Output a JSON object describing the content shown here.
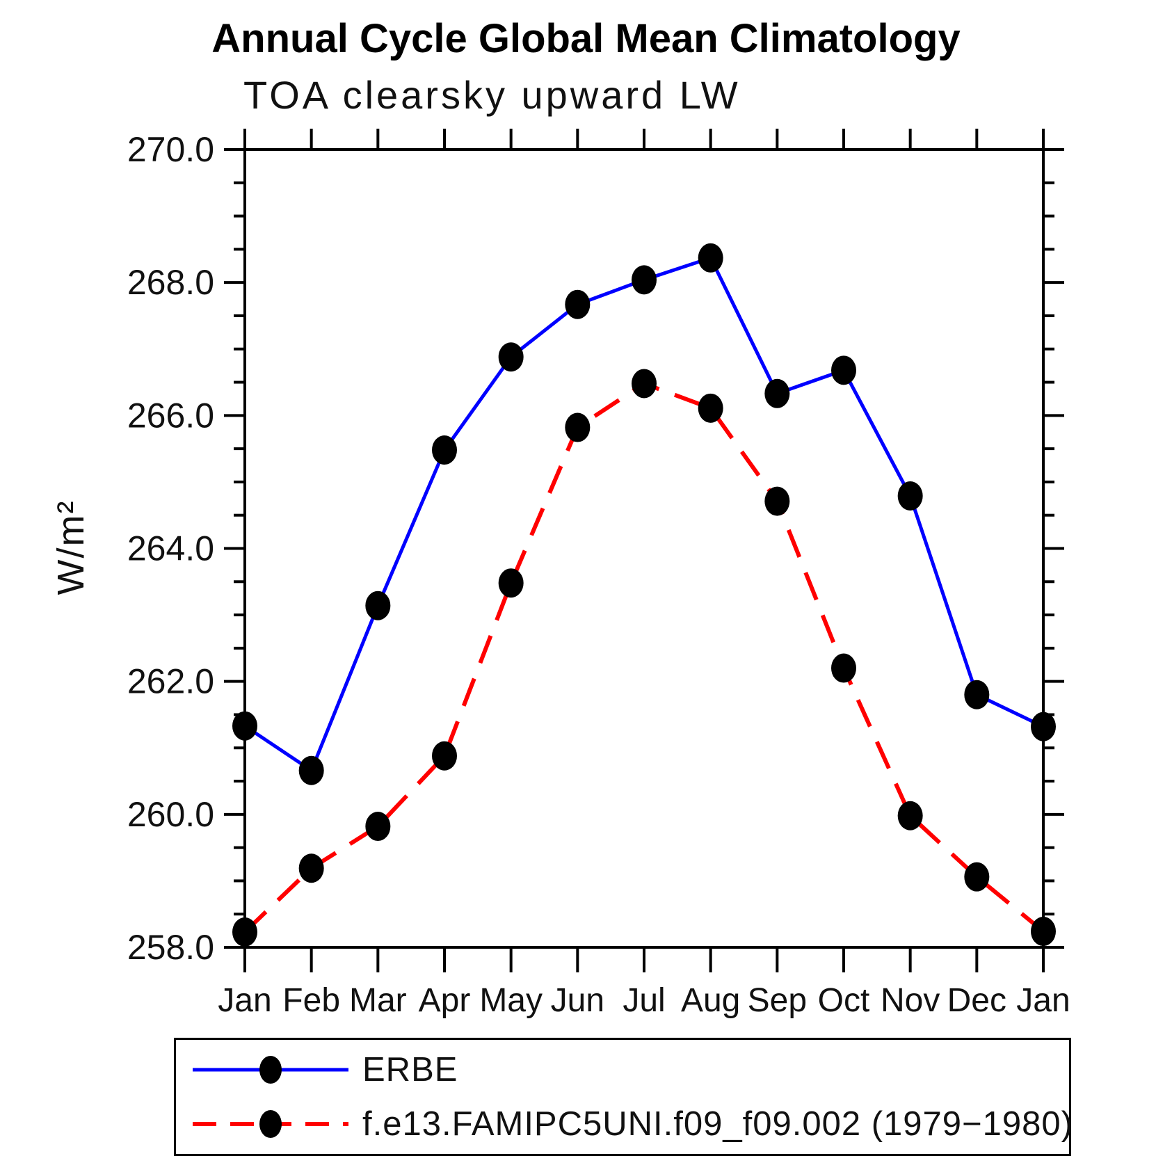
{
  "chart_data": {
    "type": "line",
    "title": "Annual Cycle Global Mean Climatology",
    "subtitle": "TOA clearsky upward LW",
    "xlabel": "",
    "ylabel": "W/m²",
    "ylim": [
      258.0,
      270.0
    ],
    "yticks": [
      258.0,
      260.0,
      262.0,
      264.0,
      266.0,
      268.0,
      270.0
    ],
    "ytick_interval": 2.0,
    "yminor_interval": 0.5,
    "grid": false,
    "legend_position": "bottom",
    "categories": [
      "Jan",
      "Feb",
      "Mar",
      "Apr",
      "May",
      "Jun",
      "Jul",
      "Aug",
      "Sep",
      "Oct",
      "Nov",
      "Dec",
      "Jan"
    ],
    "series": [
      {
        "name": "ERBE",
        "color": "#0000ff",
        "line_style": "solid",
        "marker": "filled-circle",
        "marker_color": "#000000",
        "values": [
          261.33,
          260.66,
          263.14,
          265.48,
          266.88,
          267.67,
          268.04,
          268.37,
          266.33,
          266.68,
          264.79,
          261.8,
          261.32
        ]
      },
      {
        "name": "f.e13.FAMIPC5UNI.f09_f09.002 (1979−1980)",
        "color": "#ff0000",
        "line_style": "dashed",
        "marker": "filled-circle",
        "marker_color": "#000000",
        "values": [
          258.23,
          259.19,
          259.82,
          260.88,
          263.48,
          265.82,
          266.48,
          266.11,
          264.71,
          262.2,
          259.98,
          259.06,
          258.24
        ]
      }
    ]
  }
}
